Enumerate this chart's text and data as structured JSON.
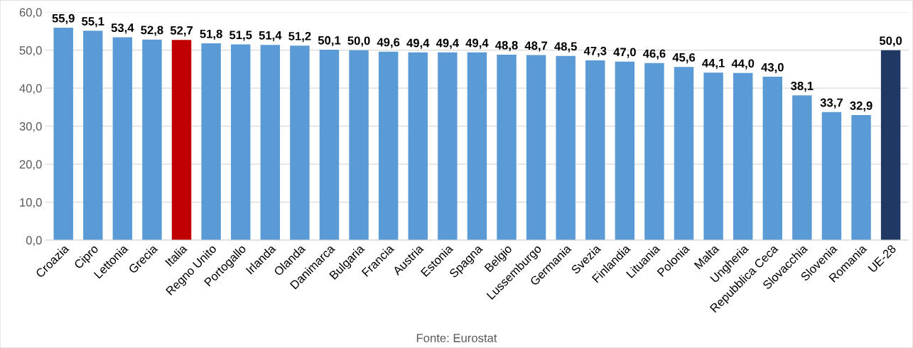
{
  "chart_data": {
    "type": "bar",
    "categories": [
      "Croazia",
      "Cipro",
      "Lettonia",
      "Grecia",
      "Italia",
      "Regno Unito",
      "Portogallo",
      "Irlanda",
      "Olanda",
      "Danimarca",
      "Bulgaria",
      "Francia",
      "Austria",
      "Estonia",
      "Spagna",
      "Belgio",
      "Lussemburgo",
      "Germania",
      "Svezia",
      "Finlandia",
      "Lituania",
      "Polonia",
      "Malta",
      "Ungheria",
      "Repubblica Ceca",
      "Slovacchia",
      "Slovenia",
      "Romania",
      "UE-28"
    ],
    "values": [
      55.9,
      55.1,
      53.4,
      52.8,
      52.7,
      51.8,
      51.5,
      51.4,
      51.2,
      50.1,
      50.0,
      49.6,
      49.4,
      49.4,
      49.4,
      48.8,
      48.7,
      48.5,
      47.3,
      47.0,
      46.6,
      45.6,
      44.1,
      44.0,
      43.0,
      38.1,
      33.7,
      32.9,
      50.0
    ],
    "value_labels": [
      "55,9",
      "55,1",
      "53,4",
      "52,8",
      "52,7",
      "51,8",
      "51,5",
      "51,4",
      "51,2",
      "50,1",
      "50,0",
      "49,6",
      "49,4",
      "49,4",
      "49,4",
      "48,8",
      "48,7",
      "48,5",
      "47,3",
      "47,0",
      "46,6",
      "45,6",
      "44,1",
      "44,0",
      "43,0",
      "38,1",
      "33,7",
      "32,9",
      "50,0"
    ],
    "colors": [
      "#5b9bd5",
      "#5b9bd5",
      "#5b9bd5",
      "#5b9bd5",
      "#c00000",
      "#5b9bd5",
      "#5b9bd5",
      "#5b9bd5",
      "#5b9bd5",
      "#5b9bd5",
      "#5b9bd5",
      "#5b9bd5",
      "#5b9bd5",
      "#5b9bd5",
      "#5b9bd5",
      "#5b9bd5",
      "#5b9bd5",
      "#5b9bd5",
      "#5b9bd5",
      "#5b9bd5",
      "#5b9bd5",
      "#5b9bd5",
      "#5b9bd5",
      "#5b9bd5",
      "#5b9bd5",
      "#5b9bd5",
      "#5b9bd5",
      "#5b9bd5",
      "#203864"
    ],
    "ylim": [
      0,
      60
    ],
    "yticks": [
      {
        "value": 0,
        "label": "0,0"
      },
      {
        "value": 10,
        "label": "10,0"
      },
      {
        "value": 20,
        "label": "20,0"
      },
      {
        "value": 30,
        "label": "30,0"
      },
      {
        "value": 40,
        "label": "40,0"
      },
      {
        "value": 50,
        "label": "50,0"
      },
      {
        "value": 60,
        "label": "60,0"
      }
    ],
    "grid": "y",
    "annotations": [
      "Fonte: Eurostat"
    ]
  }
}
